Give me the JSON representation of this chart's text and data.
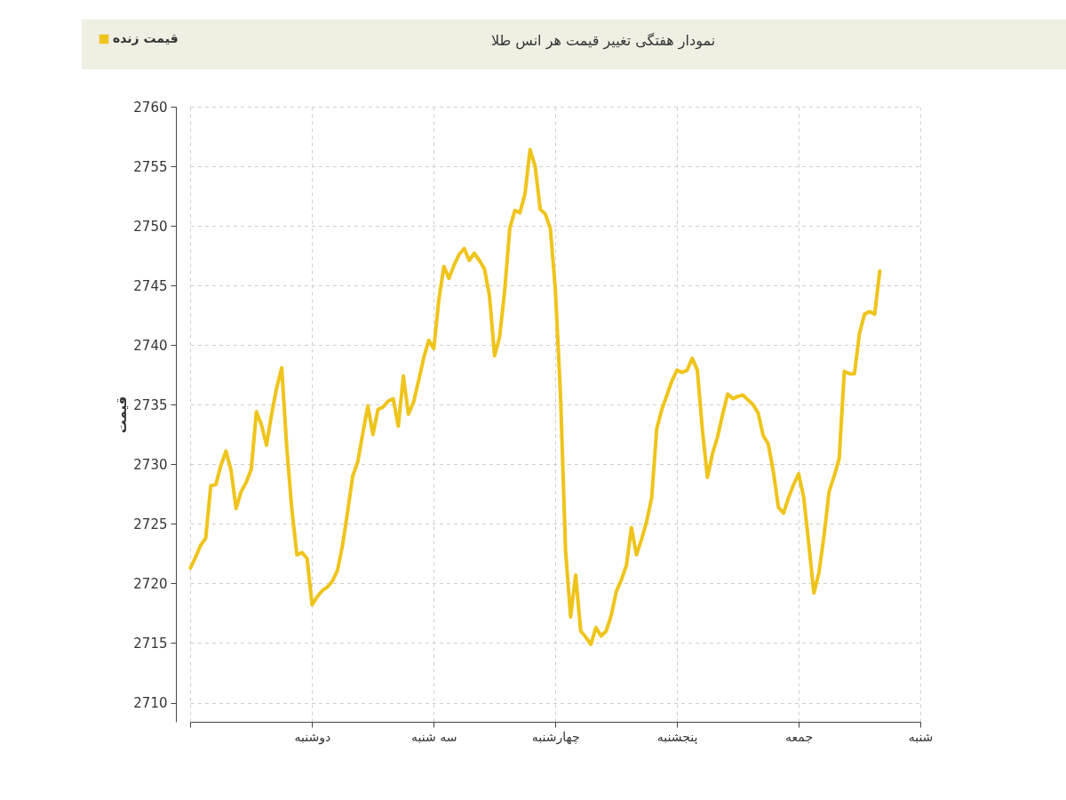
{
  "chart_data": {
    "type": "line",
    "title": "نمودار هفتگی تغییر قیمت هر انس طلا",
    "ylabel": "قیمت",
    "categories": [
      null,
      null,
      null,
      null,
      null,
      null,
      null,
      null,
      null,
      null,
      null,
      null,
      null,
      null,
      null,
      null,
      null,
      null,
      null,
      null,
      null,
      null,
      null,
      null,
      "دوشنبه",
      null,
      null,
      null,
      null,
      null,
      null,
      null,
      null,
      null,
      null,
      null,
      null,
      null,
      null,
      null,
      null,
      null,
      null,
      null,
      null,
      null,
      null,
      null,
      "سه شنبه",
      null,
      null,
      null,
      null,
      null,
      null,
      null,
      null,
      null,
      null,
      null,
      null,
      null,
      null,
      null,
      null,
      null,
      null,
      null,
      null,
      null,
      null,
      null,
      "چهارشنبه",
      null,
      null,
      null,
      null,
      null,
      null,
      null,
      null,
      null,
      null,
      null,
      null,
      null,
      null,
      null,
      null,
      null,
      null,
      null,
      null,
      null,
      null,
      null,
      "پنجشنبه",
      null,
      null,
      null,
      null,
      null,
      null,
      null,
      null,
      null,
      null,
      null,
      null,
      null,
      null,
      null,
      null,
      null,
      null,
      null,
      null,
      null,
      null,
      null,
      "جمعه",
      null,
      null,
      null,
      null,
      null,
      null,
      null,
      null,
      null,
      null,
      null,
      null,
      null,
      null,
      null,
      null,
      null,
      null,
      null,
      null,
      null,
      null,
      null,
      "شنبه"
    ],
    "series": [
      {
        "name": "قیمت زنده",
        "color": "#efc41a",
        "values": [
          2721.3,
          2722.2,
          2723.2,
          2723.8,
          2728.2,
          2728.3,
          2729.9,
          2731.1,
          2729.5,
          2726.3,
          2727.7,
          2728.5,
          2729.6,
          2734.4,
          2733.3,
          2731.6,
          2734.2,
          2736.4,
          2738.1,
          2731.4,
          2726.2,
          2722.4,
          2722.6,
          2722.1,
          2718.2,
          2718.9,
          2719.4,
          2719.7,
          2720.2,
          2721.1,
          2723.2,
          2726.0,
          2729.0,
          2730.2,
          2732.6,
          2734.9,
          2732.5,
          2734.6,
          2734.8,
          2735.3,
          2735.5,
          2733.2,
          2737.4,
          2734.2,
          2735.2,
          2737.0,
          2738.9,
          2740.4,
          2739.7,
          2743.8,
          2746.6,
          2745.6,
          2746.7,
          2747.6,
          2748.1,
          2747.1,
          2747.7,
          2747.1,
          2746.4,
          2744.1,
          2739.1,
          2740.7,
          2744.6,
          2749.8,
          2751.3,
          2751.1,
          2752.7,
          2756.4,
          2755.0,
          2751.4,
          2751.0,
          2749.8,
          2744.6,
          2735.9,
          2722.8,
          2717.2,
          2720.7,
          2716.0,
          2715.5,
          2714.9,
          2716.3,
          2715.6,
          2716.0,
          2717.3,
          2719.3,
          2720.3,
          2721.5,
          2724.7,
          2722.4,
          2723.7,
          2725.2,
          2727.2,
          2733.0,
          2734.6,
          2735.8,
          2737.0,
          2737.9,
          2737.7,
          2737.9,
          2738.9,
          2737.9,
          2732.9,
          2728.9,
          2730.9,
          2732.3,
          2734.2,
          2735.9,
          2735.5,
          2735.7,
          2735.8,
          2735.4,
          2735.0,
          2734.3,
          2732.4,
          2731.7,
          2729.4,
          2726.4,
          2725.9,
          2727.2,
          2728.3,
          2729.2,
          2727.2,
          2723.3,
          2719.2,
          2720.9,
          2724.0,
          2727.7,
          2729.0,
          2730.5,
          2737.8,
          2737.6,
          2737.6,
          2741.0,
          2742.6,
          2742.8,
          2742.6,
          2746.2,
          null,
          null,
          null,
          null,
          null,
          null,
          null,
          null
        ]
      }
    ],
    "ylim": [
      2708.4,
      2760
    ],
    "yticks": [
      2710,
      2715,
      2720,
      2725,
      2730,
      2735,
      2740,
      2745,
      2750,
      2755,
      2760
    ],
    "grid": true,
    "legend": "top left"
  }
}
